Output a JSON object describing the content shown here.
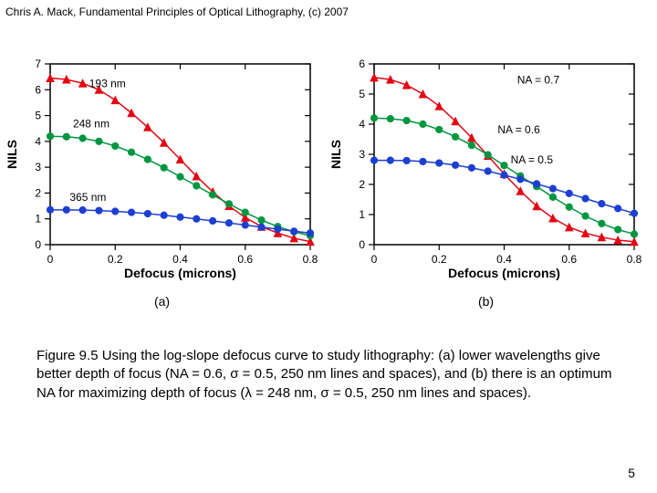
{
  "header": "Chris A. Mack, Fundamental Principles of Optical Lithography, (c) 2007",
  "sublabels": {
    "a": "(a)",
    "b": "(b)"
  },
  "caption": "Figure 9.5  Using the log-slope defocus curve to study lithography:  (a)  lower wavelengths give better depth of focus (NA = 0.6, σ = 0.5, 250 nm lines and spaces), and (b) there is an optimum NA for maximizing depth of focus (λ = 248 nm, σ = 0.5, 250 nm lines and spaces).",
  "page_number": "5",
  "chart_a": {
    "type": "line-scatter",
    "x_label": "Defocus (microns)",
    "y_label": "NILS",
    "xlim": [
      0,
      0.8
    ],
    "x_ticks": [
      0,
      0.2,
      0.4,
      0.6,
      0.8
    ],
    "ylim": [
      0,
      7
    ],
    "y_ticks": [
      0,
      1,
      2,
      3,
      4,
      5,
      6,
      7
    ],
    "background": "#ffffff",
    "axis_color": "#000000",
    "line_width": 1.5,
    "marker_size": 4,
    "series": [
      {
        "label": "193 nm",
        "label_xy": [
          0.12,
          6.1
        ],
        "color": "#e30613",
        "marker": "triangle",
        "data": [
          [
            0,
            6.45
          ],
          [
            0.05,
            6.4
          ],
          [
            0.1,
            6.25
          ],
          [
            0.15,
            6.0
          ],
          [
            0.2,
            5.6
          ],
          [
            0.25,
            5.1
          ],
          [
            0.3,
            4.55
          ],
          [
            0.35,
            3.95
          ],
          [
            0.4,
            3.3
          ],
          [
            0.45,
            2.65
          ],
          [
            0.5,
            2.05
          ],
          [
            0.55,
            1.5
          ],
          [
            0.6,
            1.05
          ],
          [
            0.65,
            0.7
          ],
          [
            0.7,
            0.45
          ],
          [
            0.75,
            0.25
          ],
          [
            0.8,
            0.12
          ]
        ]
      },
      {
        "label": "248 nm",
        "label_xy": [
          0.07,
          4.55
        ],
        "color": "#009640",
        "marker": "circle",
        "data": [
          [
            0,
            4.2
          ],
          [
            0.05,
            4.18
          ],
          [
            0.1,
            4.12
          ],
          [
            0.15,
            4.0
          ],
          [
            0.2,
            3.82
          ],
          [
            0.25,
            3.58
          ],
          [
            0.3,
            3.3
          ],
          [
            0.35,
            2.98
          ],
          [
            0.4,
            2.63
          ],
          [
            0.45,
            2.28
          ],
          [
            0.5,
            1.93
          ],
          [
            0.55,
            1.58
          ],
          [
            0.6,
            1.25
          ],
          [
            0.65,
            0.95
          ],
          [
            0.7,
            0.7
          ],
          [
            0.75,
            0.5
          ],
          [
            0.8,
            0.35
          ]
        ]
      },
      {
        "label": "365 nm",
        "label_xy": [
          0.06,
          1.7
        ],
        "color": "#1d3fd1",
        "marker": "circle",
        "data": [
          [
            0,
            1.35
          ],
          [
            0.05,
            1.35
          ],
          [
            0.1,
            1.34
          ],
          [
            0.15,
            1.32
          ],
          [
            0.2,
            1.29
          ],
          [
            0.25,
            1.25
          ],
          [
            0.3,
            1.2
          ],
          [
            0.35,
            1.14
          ],
          [
            0.4,
            1.07
          ],
          [
            0.45,
            1.0
          ],
          [
            0.5,
            0.92
          ],
          [
            0.55,
            0.84
          ],
          [
            0.6,
            0.76
          ],
          [
            0.65,
            0.68
          ],
          [
            0.7,
            0.6
          ],
          [
            0.75,
            0.52
          ],
          [
            0.8,
            0.45
          ]
        ]
      }
    ]
  },
  "chart_b": {
    "type": "line-scatter",
    "x_label": "Defocus (microns)",
    "y_label": "NILS",
    "xlim": [
      0,
      0.8
    ],
    "x_ticks": [
      0,
      0.2,
      0.4,
      0.6,
      0.8
    ],
    "ylim": [
      0,
      6
    ],
    "y_ticks": [
      0,
      1,
      2,
      3,
      4,
      5,
      6
    ],
    "background": "#ffffff",
    "axis_color": "#000000",
    "line_width": 1.5,
    "marker_size": 4,
    "series": [
      {
        "label": "NA = 0.7",
        "label_xy": [
          0.44,
          5.35
        ],
        "color": "#e30613",
        "marker": "triangle",
        "data": [
          [
            0,
            5.55
          ],
          [
            0.05,
            5.48
          ],
          [
            0.1,
            5.3
          ],
          [
            0.15,
            5.0
          ],
          [
            0.2,
            4.6
          ],
          [
            0.25,
            4.1
          ],
          [
            0.3,
            3.55
          ],
          [
            0.35,
            2.95
          ],
          [
            0.4,
            2.35
          ],
          [
            0.45,
            1.78
          ],
          [
            0.5,
            1.28
          ],
          [
            0.55,
            0.88
          ],
          [
            0.6,
            0.58
          ],
          [
            0.65,
            0.38
          ],
          [
            0.7,
            0.25
          ],
          [
            0.75,
            0.15
          ],
          [
            0.8,
            0.1
          ]
        ]
      },
      {
        "label": "NA = 0.6",
        "label_xy": [
          0.38,
          3.7
        ],
        "color": "#009640",
        "marker": "circle",
        "data": [
          [
            0,
            4.2
          ],
          [
            0.05,
            4.18
          ],
          [
            0.1,
            4.12
          ],
          [
            0.15,
            4.0
          ],
          [
            0.2,
            3.82
          ],
          [
            0.25,
            3.58
          ],
          [
            0.3,
            3.3
          ],
          [
            0.35,
            2.98
          ],
          [
            0.4,
            2.63
          ],
          [
            0.45,
            2.28
          ],
          [
            0.5,
            1.93
          ],
          [
            0.55,
            1.58
          ],
          [
            0.6,
            1.25
          ],
          [
            0.65,
            0.95
          ],
          [
            0.7,
            0.7
          ],
          [
            0.75,
            0.5
          ],
          [
            0.8,
            0.35
          ]
        ]
      },
      {
        "label": "NA = 0.5",
        "label_xy": [
          0.42,
          2.7
        ],
        "color": "#1d3fd1",
        "marker": "circle",
        "data": [
          [
            0,
            2.8
          ],
          [
            0.05,
            2.8
          ],
          [
            0.1,
            2.79
          ],
          [
            0.15,
            2.76
          ],
          [
            0.2,
            2.71
          ],
          [
            0.25,
            2.64
          ],
          [
            0.3,
            2.55
          ],
          [
            0.35,
            2.44
          ],
          [
            0.4,
            2.31
          ],
          [
            0.45,
            2.17
          ],
          [
            0.5,
            2.02
          ],
          [
            0.55,
            1.86
          ],
          [
            0.6,
            1.7
          ],
          [
            0.65,
            1.53
          ],
          [
            0.7,
            1.36
          ],
          [
            0.75,
            1.2
          ],
          [
            0.8,
            1.04
          ]
        ]
      }
    ]
  }
}
